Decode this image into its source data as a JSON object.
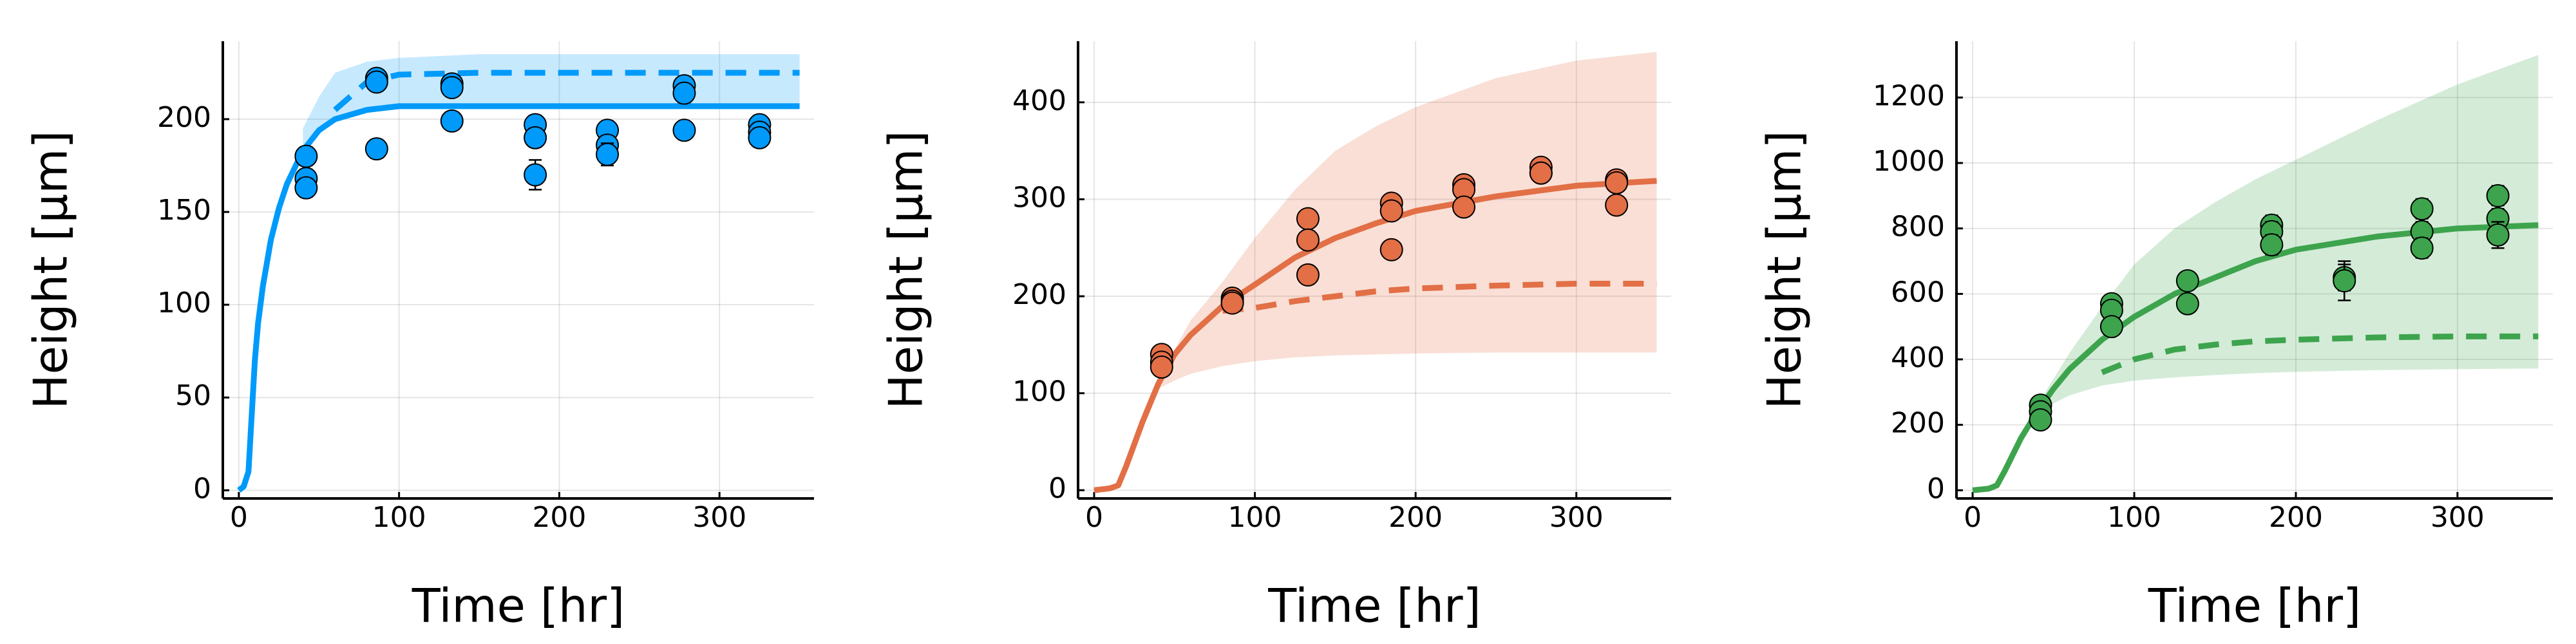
{
  "chart_data": [
    {
      "type": "line",
      "xlabel": "Time [hr]",
      "ylabel": "Height [μm]",
      "color": "#009afa",
      "grid": true,
      "xlim": [
        -10,
        359
      ],
      "xticks": [
        0,
        100,
        200,
        300
      ],
      "ylim": [
        -4.4,
        242
      ],
      "yticks": [
        0,
        50,
        100,
        150,
        200
      ],
      "x": [
        0,
        3,
        6,
        8,
        10,
        12,
        15,
        20,
        25,
        30,
        40,
        50,
        60,
        80,
        100,
        150,
        200,
        250,
        300,
        350
      ],
      "series": [
        {
          "style": "solid",
          "values": [
            0,
            2,
            10,
            40,
            70,
            90,
            110,
            135,
            152,
            165,
            183,
            194,
            200,
            205,
            207,
            207,
            207,
            207,
            207,
            207
          ]
        },
        {
          "style": "dashed",
          "values": [
            null,
            null,
            null,
            null,
            null,
            null,
            null,
            null,
            null,
            null,
            null,
            null,
            205,
            220,
            224,
            225,
            225,
            225,
            225,
            225
          ]
        }
      ],
      "band": {
        "lower": [
          null,
          null,
          null,
          null,
          null,
          null,
          null,
          null,
          null,
          null,
          183,
          193,
          199,
          204,
          206,
          207,
          207,
          207,
          207,
          207
        ],
        "upper": [
          null,
          null,
          null,
          null,
          null,
          null,
          null,
          null,
          null,
          null,
          195,
          212,
          225,
          231,
          233,
          235,
          235,
          235,
          235,
          235
        ]
      },
      "points": {
        "x": [
          42,
          42,
          42,
          86,
          86,
          86,
          133,
          133,
          133,
          185,
          185,
          185,
          230,
          230,
          230,
          278,
          278,
          278,
          325,
          325,
          325
        ],
        "y": [
          180,
          168,
          163,
          222,
          220,
          184,
          219,
          217,
          199,
          197,
          190,
          170,
          194,
          186,
          181,
          218,
          214,
          194,
          197,
          193,
          190
        ],
        "err": [
          5,
          5,
          5,
          4,
          4,
          5,
          4,
          4,
          4,
          5,
          5,
          8,
          5,
          5,
          6,
          5,
          5,
          4,
          5,
          5,
          5
        ]
      }
    },
    {
      "type": "line",
      "xlabel": "Time [hr]",
      "ylabel": "Height [μm]",
      "color": "#e26f46",
      "grid": true,
      "xlim": [
        -10,
        359
      ],
      "xticks": [
        0,
        100,
        200,
        300
      ],
      "ylim": [
        -8.5,
        463
      ],
      "yticks": [
        0,
        100,
        200,
        300,
        400
      ],
      "x": [
        0,
        10,
        15,
        20,
        30,
        40,
        50,
        60,
        80,
        100,
        125,
        150,
        175,
        200,
        250,
        300,
        350
      ],
      "series": [
        {
          "style": "solid",
          "values": [
            0,
            2,
            5,
            25,
            70,
            110,
            140,
            160,
            190,
            212,
            240,
            260,
            275,
            288,
            303,
            314,
            319
          ]
        },
        {
          "style": "dashed",
          "values": [
            null,
            null,
            null,
            null,
            null,
            null,
            null,
            null,
            185,
            188,
            195,
            200,
            205,
            208,
            211,
            213,
            213
          ]
        }
      ],
      "band": {
        "lower": [
          null,
          null,
          null,
          null,
          null,
          105,
          113,
          120,
          128,
          133,
          137,
          139,
          140,
          141,
          142,
          142,
          142
        ],
        "upper": [
          null,
          null,
          null,
          null,
          null,
          115,
          145,
          175,
          215,
          260,
          310,
          350,
          375,
          395,
          425,
          443,
          452
        ]
      },
      "points": {
        "x": [
          42,
          42,
          42,
          86,
          86,
          86,
          133,
          133,
          133,
          185,
          185,
          185,
          230,
          230,
          230,
          278,
          278,
          278,
          325,
          325,
          325
        ],
        "y": [
          140,
          132,
          127,
          198,
          195,
          193,
          280,
          258,
          222,
          296,
          288,
          248,
          315,
          310,
          292,
          333,
          327,
          327,
          320,
          317,
          294
        ],
        "err": [
          5,
          5,
          5,
          5,
          5,
          5,
          6,
          6,
          6,
          6,
          6,
          6,
          6,
          6,
          6,
          6,
          6,
          6,
          6,
          6,
          6
        ]
      }
    },
    {
      "type": "line",
      "xlabel": "Time [hr]",
      "ylabel": "Height [μm]",
      "color": "#3da44d",
      "grid": true,
      "xlim": [
        -10,
        359
      ],
      "xticks": [
        0,
        100,
        200,
        300
      ],
      "ylim": [
        -25,
        1372
      ],
      "yticks": [
        0,
        200,
        400,
        600,
        800,
        1000,
        1200
      ],
      "x": [
        0,
        10,
        15,
        20,
        30,
        40,
        50,
        60,
        80,
        100,
        125,
        150,
        175,
        200,
        250,
        300,
        350
      ],
      "series": [
        {
          "style": "solid",
          "values": [
            0,
            5,
            15,
            60,
            160,
            240,
            310,
            370,
            460,
            530,
            600,
            650,
            700,
            735,
            775,
            800,
            810
          ]
        },
        {
          "style": "dashed",
          "values": [
            null,
            null,
            null,
            null,
            null,
            null,
            null,
            null,
            360,
            400,
            430,
            445,
            455,
            460,
            467,
            470,
            470
          ]
        }
      ],
      "band": {
        "lower": [
          null,
          null,
          null,
          null,
          null,
          230,
          265,
          290,
          320,
          335,
          345,
          352,
          358,
          362,
          367,
          370,
          372
        ],
        "upper": [
          null,
          null,
          null,
          null,
          null,
          260,
          340,
          420,
          560,
          690,
          800,
          880,
          950,
          1010,
          1130,
          1240,
          1330
        ]
      },
      "points": {
        "x": [
          42,
          42,
          42,
          86,
          86,
          86,
          133,
          133,
          185,
          185,
          185,
          230,
          230,
          278,
          278,
          278,
          325,
          325,
          325
        ],
        "y": [
          260,
          240,
          215,
          570,
          550,
          500,
          640,
          570,
          810,
          790,
          750,
          650,
          640,
          860,
          790,
          740,
          900,
          830,
          780
        ],
        "err": [
          20,
          20,
          20,
          25,
          25,
          25,
          25,
          25,
          30,
          30,
          30,
          40,
          60,
          30,
          30,
          30,
          30,
          30,
          40
        ]
      }
    }
  ]
}
